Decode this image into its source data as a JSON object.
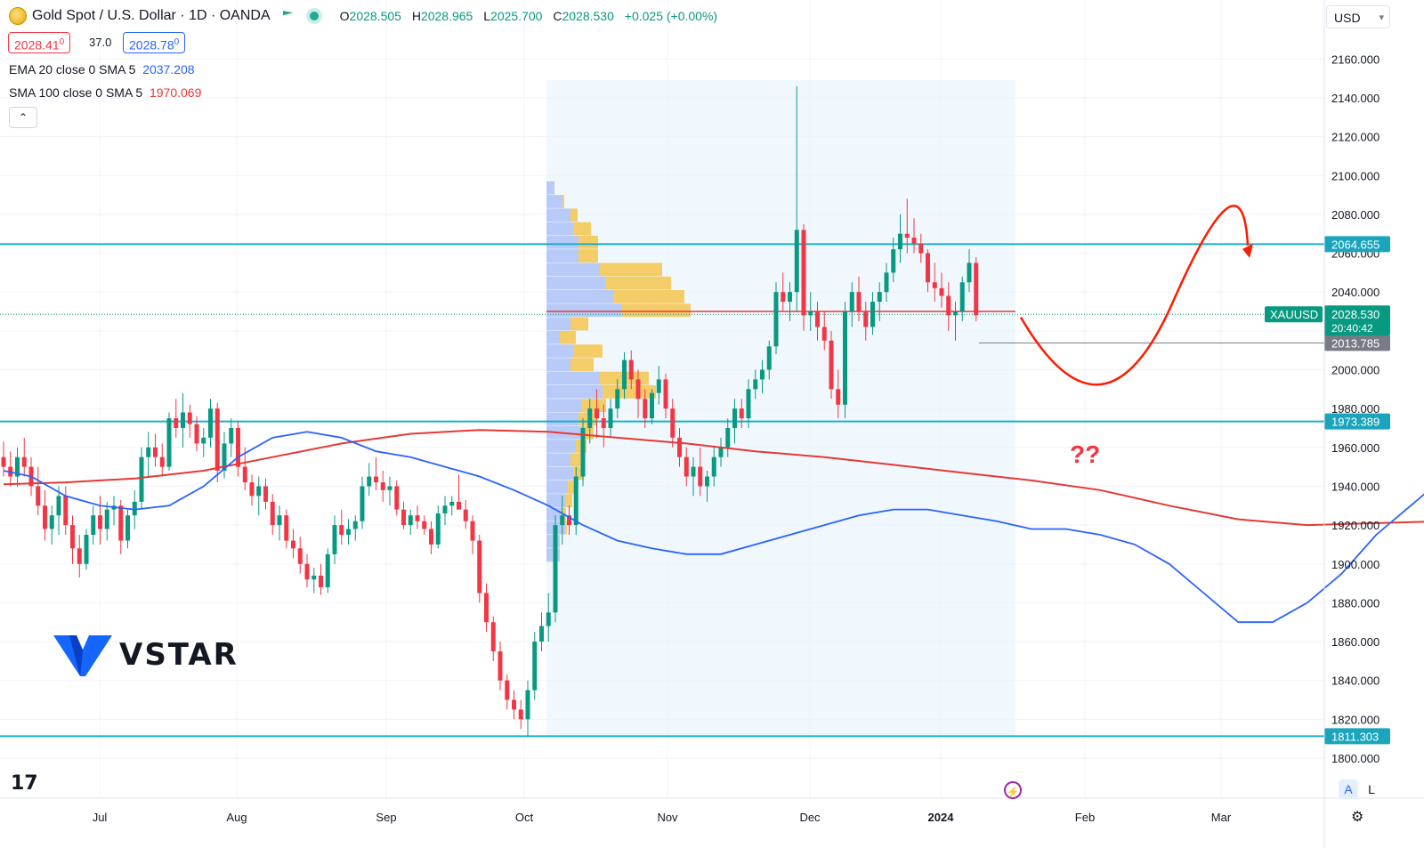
{
  "header": {
    "symbol_title": "Gold Spot / U.S. Dollar · 1D · OANDA",
    "open_label": "O",
    "open": "2028.505",
    "high_label": "H",
    "high": "2028.965",
    "low_label": "L",
    "low": "2025.700",
    "close_label": "C",
    "close": "2028.530",
    "change": "+0.025 (+0.00%)",
    "bid": "2028.41",
    "bid_sup": "0",
    "spread": "37.0",
    "ask": "2028.78",
    "ask_sup": "0",
    "currency": "USD"
  },
  "indicators": [
    {
      "label": "EMA 20 close 0 SMA 5",
      "value": "2037.208",
      "color": "#2962ff"
    },
    {
      "label": "SMA 100 close 0 SMA 5",
      "value": "1970.069",
      "color": "#e53935"
    }
  ],
  "watermark": {
    "brand": "VSTAR"
  },
  "bottom_buttons": {
    "auto": "A",
    "log": "L"
  },
  "chart_data": {
    "type": "candlestick",
    "y_axis": {
      "range": [
        1790,
        2172
      ],
      "ticks": [
        "1800.000",
        "1820.000",
        "1840.000",
        "1860.000",
        "1880.000",
        "1900.000",
        "1920.000",
        "1940.000",
        "1960.000",
        "1980.000",
        "2000.000",
        "2020.000",
        "2040.000",
        "2060.000",
        "2080.000",
        "2100.000",
        "2120.000",
        "2140.000",
        "2160.000"
      ]
    },
    "x_axis": {
      "labels": [
        "Jul",
        "Aug",
        "Sep",
        "Oct",
        "Nov",
        "Dec",
        "2024",
        "Feb",
        "Mar"
      ]
    },
    "price_labels": {
      "current_symbol": "XAUUSD",
      "current_price": "2028.530",
      "countdown": "20:40:42",
      "prev_low": "2013.785",
      "resistance": "2064.655",
      "support": "1973.389",
      "bottom": "1811.303"
    },
    "levels": {
      "resistance": 2064.655,
      "support": 1973.389,
      "bottom": 1811.303,
      "current": 2028.53,
      "prev_low": 2013.785
    },
    "annotation_text": "??",
    "projection": [
      [
        2027,
        2027
      ],
      [
        1990.5,
        1990.5
      ],
      [
        2064,
        2064
      ]
    ],
    "candles_note": "approximate daily candles, Jun 2023 – Jan 2024 (open, high, low, close)",
    "candles": [
      [
        1955,
        1963,
        1945,
        1950
      ],
      [
        1950,
        1958,
        1940,
        1945
      ],
      [
        1945,
        1960,
        1940,
        1955
      ],
      [
        1955,
        1965,
        1945,
        1950
      ],
      [
        1950,
        1955,
        1935,
        1940
      ],
      [
        1940,
        1950,
        1925,
        1930
      ],
      [
        1930,
        1938,
        1912,
        1918
      ],
      [
        1918,
        1930,
        1910,
        1925
      ],
      [
        1925,
        1940,
        1915,
        1935
      ],
      [
        1935,
        1940,
        1915,
        1920
      ],
      [
        1920,
        1925,
        1900,
        1908
      ],
      [
        1908,
        1915,
        1893,
        1900
      ],
      [
        1900,
        1918,
        1897,
        1915
      ],
      [
        1915,
        1930,
        1910,
        1925
      ],
      [
        1925,
        1935,
        1910,
        1918
      ],
      [
        1918,
        1932,
        1912,
        1928
      ],
      [
        1928,
        1935,
        1920,
        1930
      ],
      [
        1930,
        1933,
        1905,
        1912
      ],
      [
        1912,
        1928,
        1908,
        1925
      ],
      [
        1925,
        1938,
        1918,
        1932
      ],
      [
        1932,
        1960,
        1928,
        1955
      ],
      [
        1955,
        1968,
        1945,
        1960
      ],
      [
        1960,
        1967,
        1950,
        1955
      ],
      [
        1955,
        1962,
        1945,
        1950
      ],
      [
        1950,
        1978,
        1948,
        1975
      ],
      [
        1975,
        1985,
        1965,
        1970
      ],
      [
        1970,
        1988,
        1960,
        1978
      ],
      [
        1978,
        1982,
        1965,
        1972
      ],
      [
        1972,
        1976,
        1958,
        1962
      ],
      [
        1962,
        1970,
        1955,
        1965
      ],
      [
        1965,
        1985,
        1960,
        1980
      ],
      [
        1980,
        1983,
        1942,
        1948
      ],
      [
        1948,
        1968,
        1944,
        1962
      ],
      [
        1962,
        1975,
        1955,
        1970
      ],
      [
        1970,
        1973,
        1945,
        1950
      ],
      [
        1950,
        1960,
        1938,
        1942
      ],
      [
        1942,
        1946,
        1930,
        1935
      ],
      [
        1935,
        1945,
        1925,
        1940
      ],
      [
        1940,
        1944,
        1928,
        1932
      ],
      [
        1932,
        1936,
        1915,
        1920
      ],
      [
        1920,
        1930,
        1912,
        1925
      ],
      [
        1925,
        1928,
        1908,
        1912
      ],
      [
        1912,
        1918,
        1903,
        1908
      ],
      [
        1908,
        1914,
        1895,
        1900
      ],
      [
        1900,
        1905,
        1888,
        1892
      ],
      [
        1892,
        1898,
        1885,
        1894
      ],
      [
        1894,
        1900,
        1884,
        1888
      ],
      [
        1888,
        1908,
        1885,
        1905
      ],
      [
        1905,
        1925,
        1900,
        1920
      ],
      [
        1920,
        1928,
        1910,
        1915
      ],
      [
        1915,
        1923,
        1910,
        1918
      ],
      [
        1918,
        1925,
        1912,
        1922
      ],
      [
        1922,
        1945,
        1918,
        1940
      ],
      [
        1940,
        1952,
        1935,
        1945
      ],
      [
        1945,
        1955,
        1938,
        1942
      ],
      [
        1942,
        1948,
        1932,
        1938
      ],
      [
        1938,
        1945,
        1930,
        1940
      ],
      [
        1940,
        1943,
        1925,
        1928
      ],
      [
        1928,
        1932,
        1918,
        1920
      ],
      [
        1920,
        1928,
        1915,
        1925
      ],
      [
        1925,
        1930,
        1918,
        1922
      ],
      [
        1922,
        1925,
        1915,
        1918
      ],
      [
        1918,
        1922,
        1905,
        1910
      ],
      [
        1910,
        1930,
        1908,
        1926
      ],
      [
        1926,
        1935,
        1920,
        1930
      ],
      [
        1930,
        1935,
        1925,
        1932
      ],
      [
        1932,
        1946,
        1928,
        1928
      ],
      [
        1928,
        1933,
        1918,
        1922
      ],
      [
        1922,
        1925,
        1905,
        1912
      ],
      [
        1912,
        1915,
        1880,
        1885
      ],
      [
        1885,
        1890,
        1865,
        1870
      ],
      [
        1870,
        1873,
        1850,
        1855
      ],
      [
        1855,
        1860,
        1835,
        1840
      ],
      [
        1840,
        1843,
        1825,
        1830
      ],
      [
        1830,
        1835,
        1820,
        1825
      ],
      [
        1825,
        1830,
        1815,
        1820
      ],
      [
        1820,
        1840,
        1811,
        1835
      ],
      [
        1835,
        1865,
        1830,
        1860
      ],
      [
        1860,
        1875,
        1855,
        1868
      ],
      [
        1868,
        1885,
        1860,
        1875
      ],
      [
        1875,
        1925,
        1870,
        1920
      ],
      [
        1920,
        1935,
        1910,
        1925
      ],
      [
        1925,
        1930,
        1915,
        1920
      ],
      [
        1920,
        1950,
        1915,
        1945
      ],
      [
        1945,
        1975,
        1940,
        1970
      ],
      [
        1970,
        1985,
        1962,
        1980
      ],
      [
        1980,
        1990,
        1965,
        1975
      ],
      [
        1975,
        1982,
        1960,
        1970
      ],
      [
        1970,
        1985,
        1965,
        1980
      ],
      [
        1980,
        1995,
        1975,
        1990
      ],
      [
        1990,
        2009,
        1985,
        2005
      ],
      [
        2005,
        2010,
        1990,
        1995
      ],
      [
        1995,
        2000,
        1975,
        1985
      ],
      [
        1985,
        1990,
        1970,
        1975
      ],
      [
        1975,
        1990,
        1972,
        1988
      ],
      [
        1988,
        2002,
        1982,
        1995
      ],
      [
        1995,
        1998,
        1975,
        1980
      ],
      [
        1980,
        1985,
        1960,
        1965
      ],
      [
        1965,
        1970,
        1950,
        1955
      ],
      [
        1955,
        1960,
        1940,
        1945
      ],
      [
        1945,
        1955,
        1935,
        1950
      ],
      [
        1950,
        1960,
        1935,
        1940
      ],
      [
        1940,
        1948,
        1932,
        1945
      ],
      [
        1945,
        1960,
        1940,
        1955
      ],
      [
        1955,
        1965,
        1950,
        1960
      ],
      [
        1960,
        1975,
        1955,
        1970
      ],
      [
        1970,
        1985,
        1962,
        1980
      ],
      [
        1980,
        1985,
        1970,
        1975
      ],
      [
        1975,
        1995,
        1970,
        1990
      ],
      [
        1990,
        2000,
        1985,
        1995
      ],
      [
        1995,
        2005,
        1988,
        2000
      ],
      [
        2000,
        2015,
        1995,
        2012
      ],
      [
        2012,
        2045,
        2008,
        2040
      ],
      [
        2040,
        2050,
        2030,
        2035
      ],
      [
        2035,
        2045,
        2025,
        2040
      ],
      [
        2040,
        2146,
        2030,
        2072
      ],
      [
        2072,
        2075,
        2020,
        2028
      ],
      [
        2028,
        2040,
        2020,
        2030
      ],
      [
        2030,
        2035,
        2015,
        2022
      ],
      [
        2022,
        2030,
        2010,
        2015
      ],
      [
        2015,
        2020,
        1985,
        1990
      ],
      [
        1990,
        2000,
        1975,
        1982
      ],
      [
        1982,
        2035,
        1975,
        2030
      ],
      [
        2030,
        2045,
        2022,
        2040
      ],
      [
        2040,
        2048,
        2025,
        2030
      ],
      [
        2030,
        2035,
        2015,
        2022
      ],
      [
        2022,
        2040,
        2018,
        2035
      ],
      [
        2035,
        2045,
        2025,
        2040
      ],
      [
        2040,
        2055,
        2035,
        2050
      ],
      [
        2050,
        2068,
        2045,
        2062
      ],
      [
        2062,
        2080,
        2055,
        2070
      ],
      [
        2070,
        2088,
        2060,
        2068
      ],
      [
        2068,
        2078,
        2060,
        2065
      ],
      [
        2065,
        2070,
        2055,
        2060
      ],
      [
        2060,
        2062,
        2040,
        2045
      ],
      [
        2045,
        2055,
        2035,
        2042
      ],
      [
        2042,
        2050,
        2032,
        2038
      ],
      [
        2038,
        2045,
        2020,
        2028
      ],
      [
        2028,
        2035,
        2015,
        2030
      ],
      [
        2030,
        2048,
        2025,
        2045
      ],
      [
        2045,
        2062,
        2040,
        2055
      ],
      [
        2055,
        2058,
        2025,
        2028
      ]
    ],
    "ema20": [
      [
        1951,
        1948
      ],
      [
        1955,
        1945
      ],
      [
        1960,
        1935
      ],
      [
        1965,
        1930
      ],
      [
        1970,
        1928
      ],
      [
        1975,
        1930
      ],
      [
        1980,
        1940
      ],
      [
        1985,
        1955
      ],
      [
        1990,
        1965
      ],
      [
        1995,
        1968
      ],
      [
        2000,
        1965
      ],
      [
        2005,
        1958
      ],
      [
        2010,
        1955
      ],
      [
        2015,
        1950
      ],
      [
        2020,
        1945
      ],
      [
        2025,
        1938
      ],
      [
        2030,
        1930
      ],
      [
        2035,
        1920
      ],
      [
        2040,
        1912
      ],
      [
        2045,
        1908
      ],
      [
        2050,
        1905
      ],
      [
        2055,
        1905
      ],
      [
        2060,
        1910
      ],
      [
        2065,
        1915
      ],
      [
        2070,
        1920
      ],
      [
        2075,
        1925
      ],
      [
        2080,
        1928
      ],
      [
        2085,
        1928
      ],
      [
        2090,
        1925
      ],
      [
        2095,
        1922
      ],
      [
        2100,
        1918
      ],
      [
        2105,
        1918
      ],
      [
        2110,
        1915
      ],
      [
        2115,
        1910
      ],
      [
        2120,
        1900
      ],
      [
        2125,
        1885
      ],
      [
        2130,
        1870
      ],
      [
        2135,
        1870
      ],
      [
        2140,
        1880
      ],
      [
        2145,
        1895
      ],
      [
        2150,
        1915
      ],
      [
        2155,
        1930
      ],
      [
        2160,
        1945
      ],
      [
        2165,
        1955
      ],
      [
        2170,
        1958
      ],
      [
        2175,
        1958
      ],
      [
        2180,
        1955
      ],
      [
        2185,
        1955
      ],
      [
        2190,
        1960
      ],
      [
        2195,
        1968
      ],
      [
        2200,
        1975
      ],
      [
        2205,
        1985
      ],
      [
        2210,
        1995
      ],
      [
        2215,
        2003
      ],
      [
        2220,
        2005
      ],
      [
        2225,
        2000
      ],
      [
        2230,
        1995
      ],
      [
        2235,
        2002
      ],
      [
        2240,
        2010
      ],
      [
        2245,
        2018
      ],
      [
        2250,
        2025
      ],
      [
        2255,
        2032
      ],
      [
        2260,
        2040
      ],
      [
        2265,
        2042
      ],
      [
        2270,
        2040
      ],
      [
        2275,
        2037
      ]
    ],
    "sma100": [
      [
        1951,
        1941
      ],
      [
        1960,
        1942
      ],
      [
        1970,
        1944
      ],
      [
        1980,
        1948
      ],
      [
        1990,
        1955
      ],
      [
        2000,
        1962
      ],
      [
        2010,
        1967
      ],
      [
        2020,
        1969
      ],
      [
        2030,
        1968
      ],
      [
        2040,
        1965
      ],
      [
        2050,
        1962
      ],
      [
        2060,
        1958
      ],
      [
        2070,
        1955
      ],
      [
        2080,
        1951
      ],
      [
        2090,
        1947
      ],
      [
        2100,
        1943
      ],
      [
        2110,
        1938
      ],
      [
        2120,
        1930
      ],
      [
        2130,
        1923
      ],
      [
        2140,
        1920
      ],
      [
        2150,
        1921
      ],
      [
        2160,
        1922
      ],
      [
        2170,
        1924
      ],
      [
        2180,
        1926
      ],
      [
        2190,
        1930
      ],
      [
        2200,
        1934
      ],
      [
        2210,
        1938
      ],
      [
        2220,
        1941
      ],
      [
        2230,
        1945
      ],
      [
        2240,
        1952
      ],
      [
        2250,
        1960
      ],
      [
        2260,
        1966
      ],
      [
        2275,
        1970
      ]
    ],
    "volume_profile": [
      [
        2090,
        2097,
        3,
        0
      ],
      [
        2083,
        2090,
        6,
        2
      ],
      [
        2076,
        2083,
        9,
        8
      ],
      [
        2069,
        2076,
        10,
        20
      ],
      [
        2062,
        2069,
        12,
        22
      ],
      [
        2055,
        2062,
        12,
        22
      ],
      [
        2048,
        2055,
        20,
        70
      ],
      [
        2041,
        2048,
        22,
        74
      ],
      [
        2034,
        2041,
        25,
        80
      ],
      [
        2027,
        2034,
        28,
        78
      ],
      [
        2020,
        2027,
        9,
        20
      ],
      [
        2013,
        2020,
        5,
        18
      ],
      [
        2006,
        2013,
        10,
        33
      ],
      [
        1999,
        2006,
        9,
        26
      ],
      [
        1992,
        1999,
        20,
        55
      ],
      [
        1985,
        1992,
        21,
        60
      ],
      [
        1978,
        1985,
        13,
        28
      ],
      [
        1971,
        1978,
        12,
        20
      ],
      [
        1964,
        1971,
        13,
        14
      ],
      [
        1957,
        1964,
        11,
        12
      ],
      [
        1950,
        1957,
        9,
        14
      ],
      [
        1943,
        1950,
        10,
        12
      ],
      [
        1936,
        1943,
        8,
        10
      ],
      [
        1929,
        1936,
        7,
        8
      ],
      [
        1922,
        1929,
        6,
        4
      ],
      [
        1915,
        1922,
        7,
        2
      ],
      [
        1908,
        1915,
        5,
        0
      ],
      [
        1901,
        1908,
        5,
        0
      ]
    ]
  }
}
